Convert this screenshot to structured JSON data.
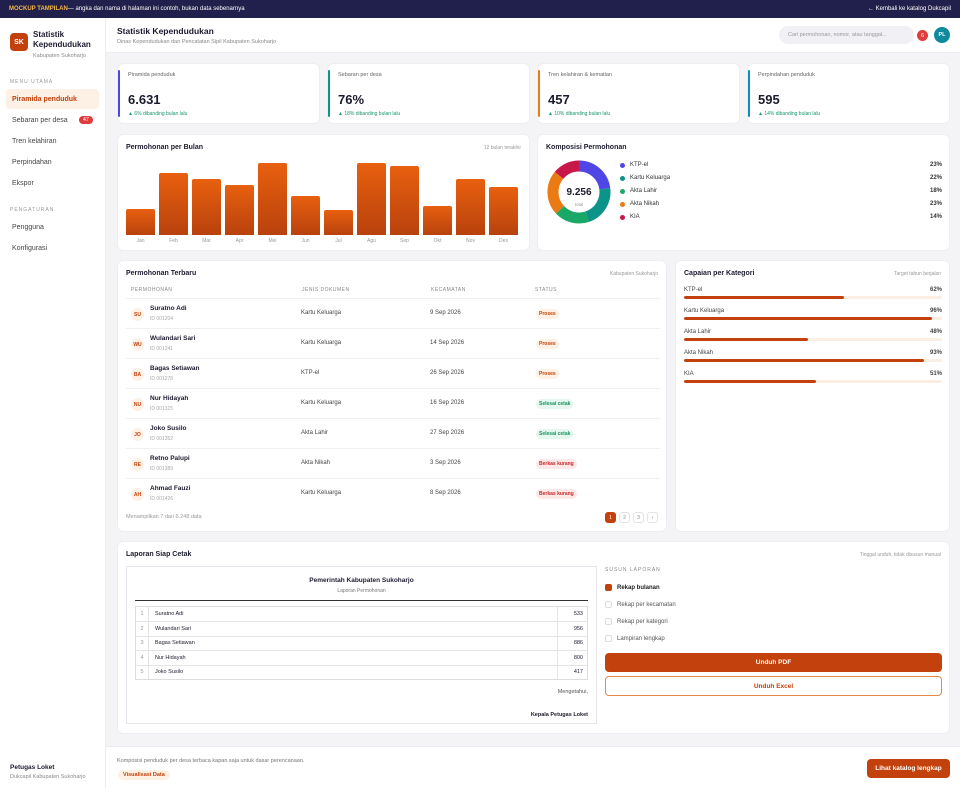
{
  "banner": {
    "tag": "MOCKUP TAMPILAN",
    "text": " — angka dan nama di halaman ini contoh, bukan data sebenarnya",
    "back": "← Kembali ke katalog Dukcapil"
  },
  "brand": {
    "logo": "SK",
    "name": "Statistik Kependudukan",
    "sub": "Kabupaten Sukoharjo"
  },
  "nav": {
    "section1": "MENU UTAMA",
    "items1": [
      {
        "label": "Piramida penduduk",
        "active": true
      },
      {
        "label": "Sebaran per desa",
        "badge": "47"
      },
      {
        "label": "Tren kelahiran"
      },
      {
        "label": "Perpindahan"
      },
      {
        "label": "Ekspor"
      }
    ],
    "section2": "PENGATURAN",
    "items2": [
      {
        "label": "Pengguna"
      },
      {
        "label": "Konfigurasi"
      }
    ]
  },
  "user": {
    "name": "Petugas Loket",
    "unit": "Dukcapil Kabupaten Sukoharjo"
  },
  "header": {
    "title": "Statistik Kependudukan",
    "subtitle": "Dinas Kependudukan dan Pencatatan Sipil Kabupaten Sukoharjo",
    "search_placeholder": "Cari permohonan, nomor, atau tanggal...",
    "notif_count": "6",
    "avatar": "PL"
  },
  "stats": [
    {
      "label": "Piramida penduduk",
      "value": "6.631",
      "change": "▲ 6% dibanding bulan lalu",
      "color": "#4f46e5"
    },
    {
      "label": "Sebaran per desa",
      "value": "76%",
      "change": "▲ 18% dibanding bulan lalu",
      "color": "#0d9488"
    },
    {
      "label": "Tren kelahiran & kematian",
      "value": "457",
      "change": "▲ 10% dibanding bulan lalu",
      "color": "#ea7a14"
    },
    {
      "label": "Perpindahan penduduk",
      "value": "595",
      "change": "▲ 14% dibanding bulan lalu",
      "color": "#0891b2"
    }
  ],
  "monthly": {
    "title": "Permohonan per Bulan",
    "range": "12 bulan terakhir",
    "chart_data": {
      "type": "bar",
      "categories": [
        "Jan",
        "Feb",
        "Mar",
        "Apr",
        "Mei",
        "Jun",
        "Jul",
        "Agu",
        "Sep",
        "Okt",
        "Nov",
        "Des"
      ],
      "values": [
        36,
        86,
        78,
        70,
        100,
        54,
        35,
        100,
        96,
        40,
        78,
        66
      ],
      "ylim": [
        0,
        100
      ],
      "grid": false,
      "legend": "none",
      "color": "#d9540e"
    }
  },
  "composition": {
    "title": "Komposisi Permohonan",
    "total": "9.256",
    "total_label": "total",
    "chart_data": {
      "type": "pie",
      "labels": [
        "KTP-el",
        "Kartu Keluarga",
        "Akta Lahir",
        "Akta Nikah",
        "KIA"
      ],
      "values": [
        23,
        22,
        18,
        23,
        14
      ],
      "colors": [
        "#4f46e5",
        "#0d9488",
        "#1aa867",
        "#ea7a14",
        "#c8184a"
      ],
      "display": [
        "23%",
        "22%",
        "18%",
        "23%",
        "14%"
      ]
    }
  },
  "requests": {
    "title": "Permohonan Terbaru",
    "scope": "Kabupaten Sukoharjo",
    "columns": [
      "PERMOHONAN",
      "JENIS DOKUMEN",
      "KECAMATAN",
      "STATUS"
    ],
    "rows": [
      {
        "initials": "SU",
        "name": "Suratno Adi",
        "id": "ID 001204",
        "doc": "Kartu Keluarga",
        "date": "9 Sep 2026",
        "status": "Proses",
        "kind": "proses"
      },
      {
        "initials": "WU",
        "name": "Wulandari Sari",
        "id": "ID 001241",
        "doc": "Kartu Keluarga",
        "date": "14 Sep 2026",
        "status": "Proses",
        "kind": "proses"
      },
      {
        "initials": "BA",
        "name": "Bagas Setiawan",
        "id": "ID 001278",
        "doc": "KTP-el",
        "date": "26 Sep 2026",
        "status": "Proses",
        "kind": "proses"
      },
      {
        "initials": "NU",
        "name": "Nur Hidayah",
        "id": "ID 001315",
        "doc": "Kartu Keluarga",
        "date": "16 Sep 2026",
        "status": "Selesai cetak",
        "kind": "selesai"
      },
      {
        "initials": "JO",
        "name": "Joko Susilo",
        "id": "ID 001352",
        "doc": "Akta Lahir",
        "date": "27 Sep 2026",
        "status": "Selesai cetak",
        "kind": "selesai"
      },
      {
        "initials": "RE",
        "name": "Retno Palupi",
        "id": "ID 001389",
        "doc": "Akta Nikah",
        "date": "3 Sep 2026",
        "status": "Berkas kurang",
        "kind": "berkas"
      },
      {
        "initials": "AH",
        "name": "Ahmad Fauzi",
        "id": "ID 001426",
        "doc": "Kartu Keluarga",
        "date": "8 Sep 2026",
        "status": "Berkas kurang",
        "kind": "berkas"
      }
    ],
    "footer": "Menampilkan 7 dari 6.248 data",
    "pages": [
      "1",
      "2",
      "3",
      "›"
    ]
  },
  "achievement": {
    "title": "Capaian per Kategori",
    "note": "Target tahun berjalan",
    "items": [
      {
        "label": "KTP-el",
        "value": 62,
        "display": "62%"
      },
      {
        "label": "Kartu Keluarga",
        "value": 96,
        "display": "96%"
      },
      {
        "label": "Akta Lahir",
        "value": 48,
        "display": "48%"
      },
      {
        "label": "Akta Nikah",
        "value": 93,
        "display": "93%"
      },
      {
        "label": "KIA",
        "value": 51,
        "display": "51%"
      }
    ]
  },
  "report": {
    "title": "Laporan Siap Cetak",
    "note": "Tinggal unduh, tidak disusun manual",
    "paper_title": "Pemerintah Kabupaten Sukoharjo",
    "paper_sub": "Laporan Permohonan",
    "rows": [
      {
        "no": "1",
        "name": "Suratno Adi",
        "value": "533"
      },
      {
        "no": "2",
        "name": "Wulandari Sari",
        "value": "956"
      },
      {
        "no": "3",
        "name": "Bagas Setiawan",
        "value": "886"
      },
      {
        "no": "4",
        "name": "Nur Hidayah",
        "value": "800"
      },
      {
        "no": "5",
        "name": "Joko Susilo",
        "value": "417"
      }
    ],
    "acknowledge": "Mengetahui,",
    "signer": "Kepala Petugas Loket",
    "options_title": "SUSUN LAPORAN",
    "options": [
      {
        "label": "Rekap bulanan",
        "checked": true
      },
      {
        "label": "Rekap per kecamatan",
        "checked": false
      },
      {
        "label": "Rekap per kategori",
        "checked": false
      },
      {
        "label": "Lampiran lengkap",
        "checked": false
      }
    ],
    "pdf": "Unduh PDF",
    "excel": "Unduh Excel"
  },
  "footer": {
    "text": "Komposisi penduduk per desa terbaca kapan saja untuk dasar perencanaan.",
    "badge": "Visualisasi Data",
    "cta": "Lihat katalog lengkap"
  }
}
